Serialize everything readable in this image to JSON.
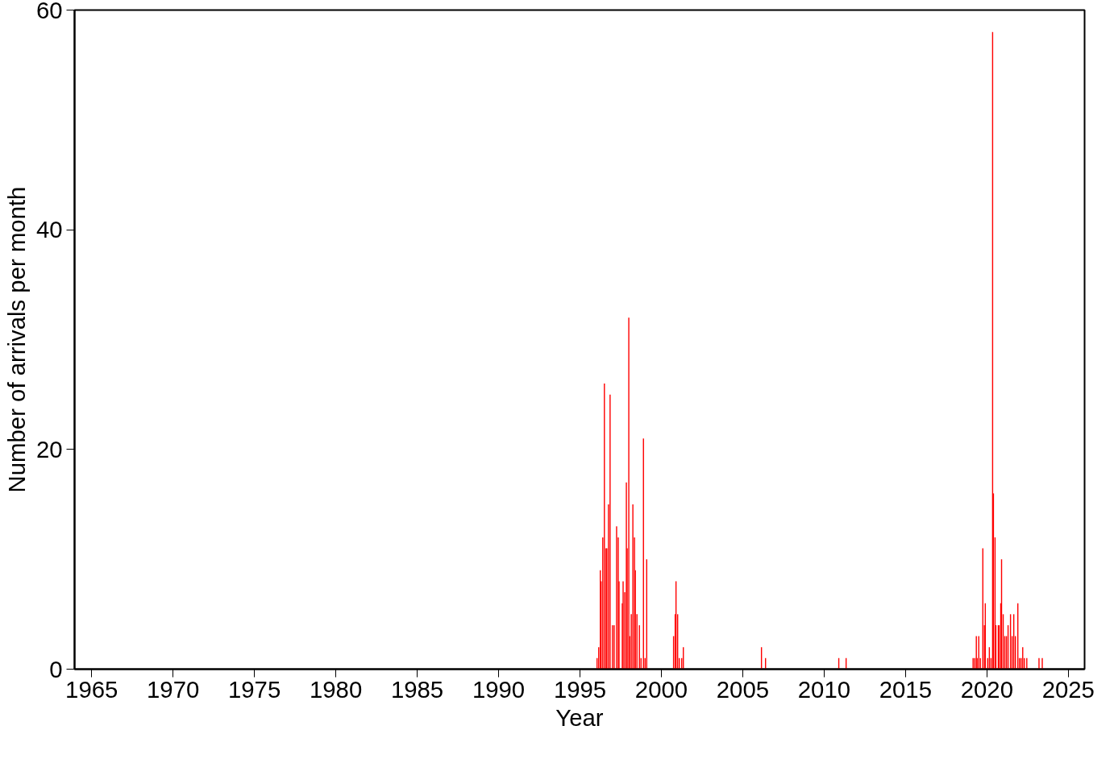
{
  "chart_data": {
    "type": "bar",
    "xlabel": "Year",
    "ylabel": "Number of arrivals per month",
    "grid": false,
    "xlim": [
      1963.95,
      2026
    ],
    "xticks": [
      1965,
      1970,
      1975,
      1980,
      1985,
      1990,
      1995,
      2000,
      2005,
      2010,
      2015,
      2020,
      2025
    ],
    "ylim": [
      0,
      60
    ],
    "yticks": [
      0,
      20,
      40,
      60
    ],
    "series": [
      {
        "color": "#ff0000",
        "x": [
          1996.05,
          1996.15,
          1996.25,
          1996.3,
          1996.4,
          1996.5,
          1996.6,
          1996.65,
          1996.75,
          1996.85,
          1997.0,
          1997.1,
          1997.25,
          1997.35,
          1997.4,
          1997.6,
          1997.65,
          1997.75,
          1997.85,
          1997.9,
          1998.0,
          1998.05,
          1998.15,
          1998.25,
          1998.35,
          1998.4,
          1998.5,
          1998.65,
          1998.75,
          1998.9,
          1999.0,
          1999.1,
          2000.75,
          2000.85,
          2000.9,
          2001.0,
          2001.1,
          2001.25,
          2001.35,
          2006.15,
          2006.4,
          2010.9,
          2011.35,
          2019.15,
          2019.25,
          2019.35,
          2019.4,
          2019.5,
          2019.6,
          2019.75,
          2019.85,
          2019.9,
          2020.05,
          2020.15,
          2020.25,
          2020.35,
          2020.4,
          2020.5,
          2020.55,
          2020.7,
          2020.75,
          2020.85,
          2020.9,
          2021.0,
          2021.1,
          2021.2,
          2021.3,
          2021.45,
          2021.55,
          2021.65,
          2021.75,
          2021.9,
          2022.0,
          2022.1,
          2022.2,
          2022.3,
          2022.45,
          2023.2,
          2023.4
        ],
        "values": [
          1,
          2,
          9,
          8,
          12,
          26,
          11,
          11,
          15,
          25,
          4,
          4,
          13,
          12,
          8,
          6,
          8,
          7,
          17,
          11,
          32,
          3,
          5,
          15,
          12,
          9,
          5,
          4,
          1,
          21,
          1,
          10,
          3,
          5,
          8,
          5,
          1,
          1,
          2,
          2,
          1,
          1,
          1,
          1,
          1,
          3,
          1,
          3,
          1,
          11,
          4,
          6,
          1,
          2,
          1,
          58,
          16,
          12,
          4,
          4,
          4,
          6,
          10,
          5,
          3,
          3,
          4,
          5,
          3,
          5,
          3,
          6,
          1,
          1,
          2,
          1,
          1,
          1,
          1
        ]
      }
    ]
  }
}
